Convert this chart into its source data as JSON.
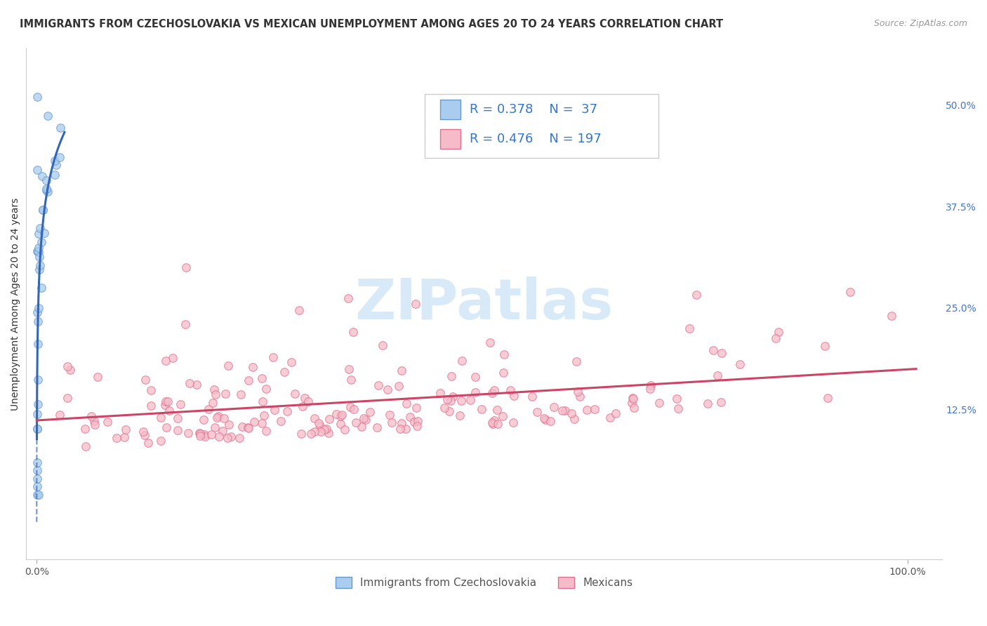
{
  "title": "IMMIGRANTS FROM CZECHOSLOVAKIA VS MEXICAN UNEMPLOYMENT AMONG AGES 20 TO 24 YEARS CORRELATION CHART",
  "source": "Source: ZipAtlas.com",
  "ylabel": "Unemployment Among Ages 20 to 24 years",
  "x_tick_labels": [
    "0.0%",
    "100.0%"
  ],
  "y_tick_labels": [
    "",
    "12.5%",
    "25.0%",
    "37.5%",
    "50.0%"
  ],
  "color_blue_fill": "#aaccee",
  "color_blue_edge": "#6699cc",
  "color_blue_line": "#3366bb",
  "color_pink_fill": "#f5bbc8",
  "color_pink_edge": "#e07090",
  "color_pink_line": "#cc4466",
  "color_legend_text": "#3377cc",
  "watermark_color": "#d8eaf8",
  "background_color": "#ffffff",
  "grid_color": "#cccccc",
  "title_color": "#333333",
  "source_color": "#999999",
  "ylabel_color": "#333333",
  "tick_color": "#4477cc",
  "title_fontsize": 10.5,
  "axis_label_fontsize": 10,
  "tick_fontsize": 10,
  "legend_fontsize": 13
}
